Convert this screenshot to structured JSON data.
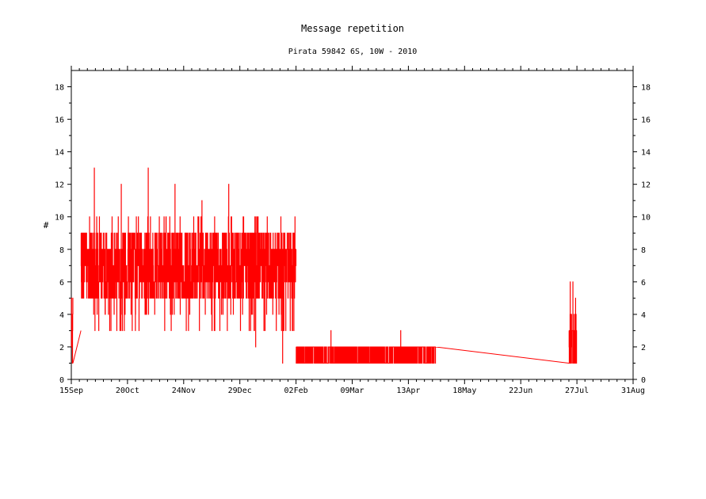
{
  "chart_data": {
    "type": "line",
    "title": "Message repetition",
    "subtitle": "Pirata 59842 6S, 10W - 2010",
    "xlabel": "",
    "ylabel": "#",
    "ylim": [
      0,
      19
    ],
    "yticks": [
      0,
      2,
      4,
      6,
      8,
      10,
      12,
      14,
      16,
      18
    ],
    "xlim": [
      "2009-09-15",
      "2010-08-31"
    ],
    "xtick_labels": [
      "15Sep",
      "20Oct",
      "24Nov",
      "29Dec",
      "02Feb",
      "09Mar",
      "13Apr",
      "18May",
      "22Jun",
      "27Jul",
      "31Aug"
    ],
    "grid": false,
    "line_color": "#ff0000",
    "series": [
      {
        "name": "",
        "regimes": [
          {
            "start": "2009-09-15",
            "end": "2009-09-16",
            "low": 1,
            "high": 5
          },
          {
            "start": "2009-09-16",
            "end": "2009-09-21",
            "from": 1,
            "to": 3,
            "kind": "connector"
          },
          {
            "start": "2009-09-21",
            "end": "2010-02-02",
            "low": 3,
            "high": 10,
            "core_low": 5,
            "core_high": 9,
            "spikes": [
              13,
              12,
              13,
              12,
              11,
              12,
              2,
              1
            ]
          },
          {
            "start": "2010-02-02",
            "end": "2010-04-30",
            "low": 1,
            "high": 2,
            "spikes": [
              3,
              3
            ]
          },
          {
            "start": "2010-04-30",
            "end": "2010-07-22",
            "from": 2,
            "to": 1,
            "kind": "connector"
          },
          {
            "start": "2010-07-22",
            "end": "2010-07-27",
            "low": 1,
            "high": 4,
            "spikes": [
              6,
              6,
              5
            ]
          }
        ]
      }
    ]
  }
}
